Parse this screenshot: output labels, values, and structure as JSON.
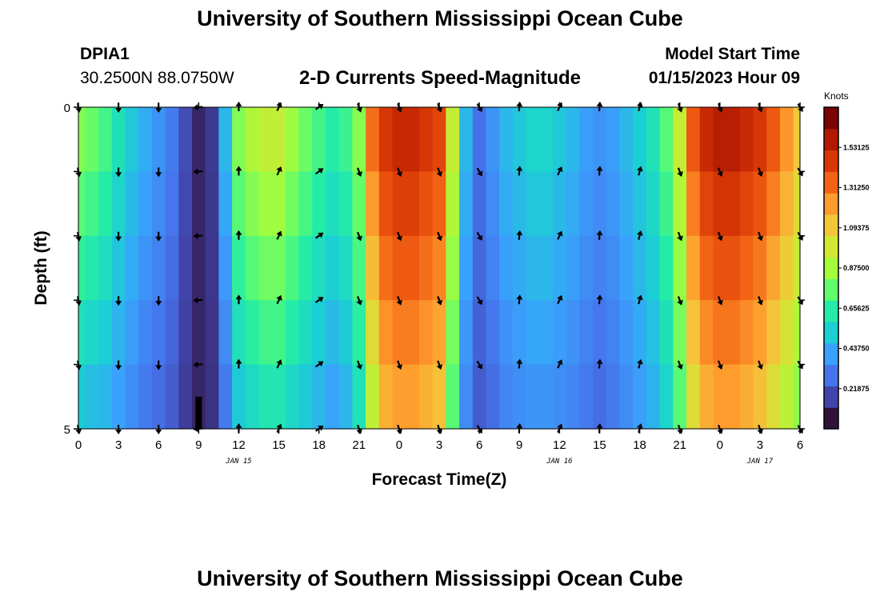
{
  "header": {
    "title": "University of Southern Mississippi Ocean Cube",
    "station_id": "DPIA1",
    "coordinates": "30.2500N  88.0750W",
    "plot_title": "2-D Currents Speed-Magnitude",
    "model_start_label": "Model Start Time",
    "model_start_value": "01/15/2023 Hour 09"
  },
  "footer": {
    "title": "University of Southern Mississippi Ocean Cube"
  },
  "chart_data": {
    "type": "heatmap",
    "title": "2-D Currents Speed-Magnitude",
    "xlabel": "Forecast Time(Z)",
    "ylabel": "Depth (ft)",
    "x_hours": [
      0,
      3,
      6,
      9,
      12,
      15,
      18,
      21,
      24,
      27,
      30,
      33,
      36,
      39,
      42,
      45,
      48,
      51,
      54
    ],
    "x_tick_labels": [
      "0",
      "3",
      "6",
      "9",
      "12",
      "15",
      "18",
      "21",
      "0",
      "3",
      "6",
      "9",
      "12",
      "15",
      "18",
      "21",
      "0",
      "3",
      "6"
    ],
    "date_labels": [
      {
        "hour": 12,
        "label": "JAN 15"
      },
      {
        "hour": 36,
        "label": "JAN 16"
      },
      {
        "hour": 51,
        "label": "JAN 17"
      }
    ],
    "xlim": [
      0,
      54
    ],
    "ylim": [
      0,
      5
    ],
    "y_tick_labels": [
      {
        "value": 0,
        "label": "0"
      },
      {
        "value": 5,
        "label": "5"
      }
    ],
    "depth_levels": [
      0,
      1,
      2,
      3,
      4,
      5
    ],
    "speed_profile": {
      "hours": [
        0,
        1,
        2,
        3,
        4,
        5,
        6,
        7,
        8,
        9,
        10,
        11,
        12,
        13,
        14,
        15,
        16,
        17,
        18,
        19,
        20,
        21,
        22,
        23,
        24,
        25,
        26,
        27,
        28,
        29,
        30,
        31,
        32,
        33,
        34,
        35,
        36,
        37,
        38,
        39,
        40,
        41,
        42,
        43,
        44,
        45,
        46,
        47,
        48,
        49,
        50,
        51,
        52,
        53,
        54
      ],
      "surface": [
        0.85,
        0.8,
        0.72,
        0.6,
        0.5,
        0.42,
        0.35,
        0.28,
        0.15,
        0.05,
        0.1,
        0.45,
        0.85,
        0.95,
        1.0,
        1.0,
        0.9,
        0.8,
        0.72,
        0.65,
        0.7,
        0.85,
        1.4,
        1.55,
        1.6,
        1.6,
        1.55,
        1.5,
        1.0,
        0.45,
        0.25,
        0.35,
        0.45,
        0.5,
        0.55,
        0.55,
        0.5,
        0.45,
        0.38,
        0.35,
        0.38,
        0.45,
        0.52,
        0.6,
        0.75,
        1.0,
        1.45,
        1.6,
        1.65,
        1.65,
        1.6,
        1.55,
        1.45,
        1.3,
        1.15
      ],
      "bottom": [
        0.45,
        0.42,
        0.4,
        0.35,
        0.3,
        0.25,
        0.22,
        0.18,
        0.1,
        0.05,
        0.08,
        0.25,
        0.45,
        0.5,
        0.55,
        0.55,
        0.5,
        0.45,
        0.4,
        0.35,
        0.4,
        0.55,
        0.9,
        1.15,
        1.2,
        1.2,
        1.15,
        1.1,
        0.7,
        0.3,
        0.18,
        0.22,
        0.28,
        0.3,
        0.32,
        0.32,
        0.3,
        0.28,
        0.25,
        0.22,
        0.25,
        0.3,
        0.35,
        0.4,
        0.5,
        0.7,
        1.0,
        1.15,
        1.2,
        1.2,
        1.15,
        1.1,
        1.0,
        0.9,
        0.8
      ]
    },
    "arrow_directions": [
      {
        "hour": 0,
        "angle": 170
      },
      {
        "hour": 3,
        "angle": 180
      },
      {
        "hour": 6,
        "angle": 180
      },
      {
        "hour": 9,
        "angle": 265
      },
      {
        "hour": 12,
        "angle": 0
      },
      {
        "hour": 15,
        "angle": 25
      },
      {
        "hour": 18,
        "angle": 55
      },
      {
        "hour": 21,
        "angle": 160
      },
      {
        "hour": 24,
        "angle": 160
      },
      {
        "hour": 27,
        "angle": 160
      },
      {
        "hour": 30,
        "angle": 150
      },
      {
        "hour": 33,
        "angle": 5
      },
      {
        "hour": 36,
        "angle": 25
      },
      {
        "hour": 39,
        "angle": 5
      },
      {
        "hour": 42,
        "angle": 15
      },
      {
        "hour": 45,
        "angle": 160
      },
      {
        "hour": 48,
        "angle": 160
      },
      {
        "hour": 51,
        "angle": 160
      },
      {
        "hour": 54,
        "angle": 150
      }
    ],
    "colorbar": {
      "unit": "Knots",
      "min": 0,
      "max": 1.75,
      "tick_values": [
        0.21875,
        0.4375,
        0.65625,
        0.875,
        1.09375,
        1.3125,
        1.53125
      ],
      "tick_labels": [
        "0.21875",
        "0.43750",
        "0.65625",
        "0.87500",
        "1.09375",
        "1.31250",
        "1.53125"
      ],
      "colors": [
        "#30123b",
        "#4145ab",
        "#4675ed",
        "#39a2fc",
        "#1bcfd4",
        "#24eca6",
        "#61fc6c",
        "#a4fc3b",
        "#d1e834",
        "#f3c63a",
        "#fe9b2d",
        "#f36315",
        "#d93806",
        "#b11901",
        "#7a0402"
      ]
    },
    "bottom_marker": {
      "hour": 9,
      "depth_start": 4.5,
      "depth_end": 5,
      "color": "#000000"
    }
  }
}
